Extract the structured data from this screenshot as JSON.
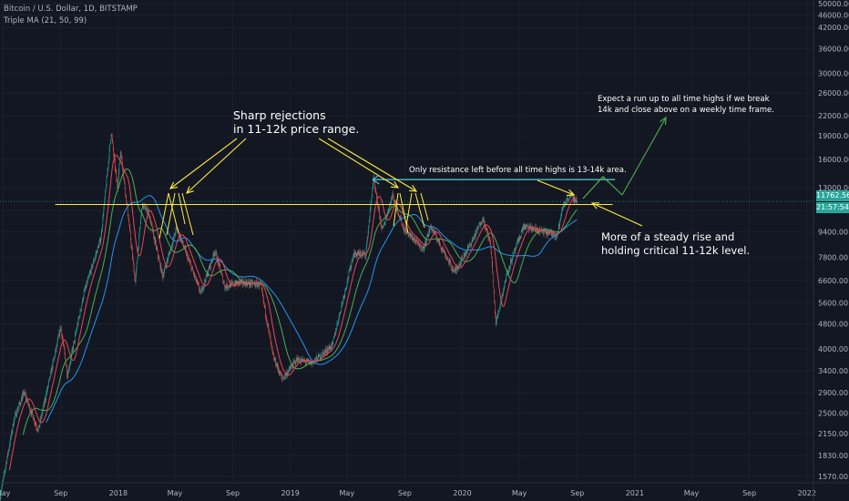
{
  "header": {
    "symbol_line": "Bitcoin / U.S. Dollar, 1D, BITSTAMP",
    "indicator_line": "Triple MA (21, 50, 99)"
  },
  "price_axis": {
    "ticks": [
      "50000.00",
      "46000.00",
      "42000.00",
      "36000.00",
      "30000.00",
      "26000.00",
      "22000.00",
      "19000.00",
      "16000.00",
      "13000.00",
      "11000.00",
      "9400.00",
      "7800.00",
      "6600.00",
      "5600.00",
      "4800.00",
      "4000.00",
      "3400.00",
      "2900.00",
      "2500.00",
      "2150.00",
      "1830.00",
      "1570.00"
    ],
    "current_price": "11762.56",
    "countdown": "21:57:54"
  },
  "time_axis": {
    "ticks": [
      "May",
      "Sep",
      "2018",
      "May",
      "Sep",
      "2019",
      "May",
      "Sep",
      "2020",
      "May",
      "Sep",
      "2021",
      "May",
      "Sep",
      "2022"
    ]
  },
  "annotations": {
    "rejections": [
      "Sharp rejections",
      "in 11-12k price range."
    ],
    "resistance": "Only resistance left before all time highs is 13-14k area.",
    "expect": [
      "Expect a run up to all time highs if we break",
      "14k and close above on a weekly time frame."
    ],
    "steady": [
      "More of a steady rise and",
      "holding critical 11-12k level."
    ]
  },
  "colors": {
    "background": "#131722",
    "up_candle": "#26a69a",
    "down_candle": "#ef5350",
    "ma21": "#e8465a",
    "ma50": "#4caf50",
    "ma99": "#2196f3",
    "yellow": "#ffeb3b",
    "cyan": "#4dd0e1",
    "green": "#4caf50"
  },
  "chart_data": {
    "type": "candlestick",
    "title": "Bitcoin / U.S. Dollar, 1D, BITSTAMP",
    "y_scale": "log",
    "ylim": [
      1500,
      50000
    ],
    "x_range": [
      "2017-04-25",
      "2022-01-15"
    ],
    "indicator": "Triple MA (21, 50, 99)",
    "last_price": 11762.56,
    "support_resistance_levels": [
      11500,
      13800
    ],
    "price_path": [
      [
        "2017-04-25",
        1350
      ],
      [
        "2017-05-25",
        2400
      ],
      [
        "2017-06-15",
        2900
      ],
      [
        "2017-07-15",
        2200
      ],
      [
        "2017-08-10",
        3300
      ],
      [
        "2017-09-01",
        4700
      ],
      [
        "2017-09-15",
        3300
      ],
      [
        "2017-10-20",
        6000
      ],
      [
        "2017-11-25",
        9000
      ],
      [
        "2017-12-17",
        19500
      ],
      [
        "2017-12-30",
        13000
      ],
      [
        "2018-01-06",
        17000
      ],
      [
        "2018-01-20",
        11200
      ],
      [
        "2018-02-06",
        6500
      ],
      [
        "2018-02-20",
        11400
      ],
      [
        "2018-03-05",
        11000
      ],
      [
        "2018-04-05",
        6800
      ],
      [
        "2018-05-05",
        9700
      ],
      [
        "2018-06-25",
        6000
      ],
      [
        "2018-07-25",
        8200
      ],
      [
        "2018-08-15",
        6300
      ],
      [
        "2018-09-15",
        6500
      ],
      [
        "2018-10-30",
        6400
      ],
      [
        "2018-11-25",
        3800
      ],
      [
        "2018-12-15",
        3200
      ],
      [
        "2019-01-15",
        3700
      ],
      [
        "2019-02-15",
        3600
      ],
      [
        "2019-03-31",
        4100
      ],
      [
        "2019-05-15",
        8000
      ],
      [
        "2019-06-10",
        8000
      ],
      [
        "2019-06-26",
        13800
      ],
      [
        "2019-07-15",
        9500
      ],
      [
        "2019-08-06",
        12300
      ],
      [
        "2019-08-30",
        9600
      ],
      [
        "2019-10-10",
        8300
      ],
      [
        "2019-10-26",
        9800
      ],
      [
        "2019-12-15",
        7000
      ],
      [
        "2020-01-20",
        8700
      ],
      [
        "2020-02-13",
        10400
      ],
      [
        "2020-03-01",
        8600
      ],
      [
        "2020-03-12",
        4800
      ],
      [
        "2020-04-05",
        7000
      ],
      [
        "2020-05-10",
        9800
      ],
      [
        "2020-06-10",
        9500
      ],
      [
        "2020-07-20",
        9200
      ],
      [
        "2020-08-02",
        11400
      ],
      [
        "2020-08-17",
        12300
      ],
      [
        "2020-08-31",
        11762.56
      ]
    ]
  }
}
